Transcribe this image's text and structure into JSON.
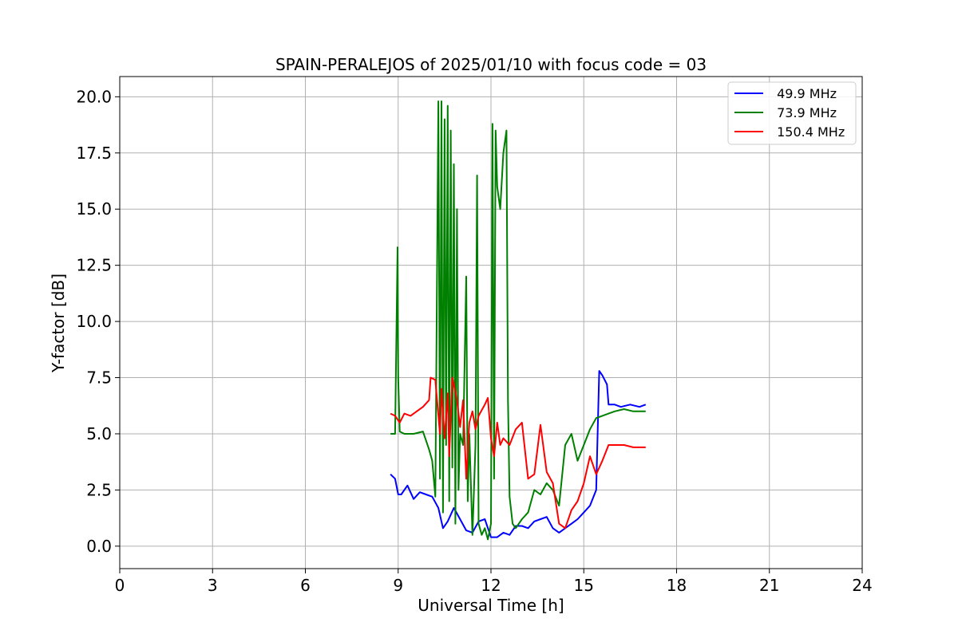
{
  "chart_data": {
    "type": "line",
    "title": "SPAIN-PERALEJOS of 2025/01/10 with focus code = 03",
    "xlabel": "Universal Time [h]",
    "ylabel": "Y-factor [dB]",
    "xlim": [
      0,
      24
    ],
    "ylim": [
      -1,
      20.9
    ],
    "x_ticks": [
      0,
      3,
      6,
      9,
      12,
      15,
      18,
      21,
      24
    ],
    "x_tick_labels": [
      "0",
      "3",
      "6",
      "9",
      "12",
      "15",
      "18",
      "21",
      "24"
    ],
    "y_ticks": [
      0.0,
      2.5,
      5.0,
      7.5,
      10.0,
      12.5,
      15.0,
      17.5,
      20.0
    ],
    "y_tick_labels": [
      "0.0",
      "2.5",
      "5.0",
      "7.5",
      "10.0",
      "12.5",
      "15.0",
      "17.5",
      "20.0"
    ],
    "grid": true,
    "legend_position": "top-right",
    "series": [
      {
        "name": " 49.9 MHz",
        "color": "#0000ff",
        "x": [
          8.75,
          8.9,
          9.0,
          9.1,
          9.3,
          9.5,
          9.7,
          9.9,
          10.1,
          10.3,
          10.45,
          10.6,
          10.8,
          11.0,
          11.2,
          11.4,
          11.6,
          11.8,
          12.0,
          12.2,
          12.4,
          12.6,
          12.8,
          13.0,
          13.2,
          13.4,
          13.6,
          13.8,
          14.0,
          14.2,
          14.4,
          14.6,
          14.8,
          15.0,
          15.2,
          15.4,
          15.5,
          15.6,
          15.75,
          15.8,
          16.0,
          16.2,
          16.5,
          16.8,
          17.0
        ],
        "y": [
          3.2,
          3.0,
          2.3,
          2.3,
          2.7,
          2.1,
          2.4,
          2.3,
          2.2,
          1.7,
          0.8,
          1.1,
          1.7,
          1.2,
          0.7,
          0.6,
          1.1,
          1.2,
          0.4,
          0.4,
          0.6,
          0.5,
          0.9,
          0.9,
          0.8,
          1.1,
          1.2,
          1.3,
          0.8,
          0.6,
          0.8,
          1.0,
          1.2,
          1.5,
          1.8,
          2.5,
          7.8,
          7.6,
          7.2,
          6.3,
          6.3,
          6.2,
          6.3,
          6.2,
          6.3
        ]
      },
      {
        "name": " 73.9 MHz",
        "color": "#008000",
        "x": [
          8.75,
          8.9,
          8.98,
          9.0,
          9.05,
          9.2,
          9.5,
          9.8,
          10.0,
          10.1,
          10.2,
          10.3,
          10.35,
          10.4,
          10.45,
          10.5,
          10.55,
          10.6,
          10.65,
          10.7,
          10.75,
          10.8,
          10.85,
          10.9,
          10.95,
          11.0,
          11.1,
          11.2,
          11.25,
          11.3,
          11.4,
          11.5,
          11.55,
          11.6,
          11.7,
          11.8,
          11.9,
          12.0,
          12.05,
          12.1,
          12.15,
          12.2,
          12.3,
          12.4,
          12.5,
          12.55,
          12.6,
          12.7,
          12.8,
          13.0,
          13.2,
          13.4,
          13.6,
          13.8,
          14.0,
          14.2,
          14.4,
          14.6,
          14.8,
          15.0,
          15.2,
          15.4,
          15.6,
          15.8,
          16.0,
          16.3,
          16.6,
          17.0
        ],
        "y": [
          5.0,
          5.0,
          13.3,
          7.5,
          5.1,
          5.0,
          5.0,
          5.1,
          4.3,
          3.8,
          2.2,
          19.8,
          3.0,
          19.8,
          1.5,
          19.0,
          4.5,
          19.6,
          2.0,
          18.5,
          3.5,
          17.0,
          1.0,
          15.0,
          2.5,
          5.0,
          4.5,
          12.0,
          2.0,
          5.0,
          0.5,
          4.5,
          16.5,
          1.0,
          0.5,
          0.8,
          0.3,
          1.0,
          18.8,
          3.0,
          18.5,
          16.0,
          15.0,
          17.5,
          18.5,
          6.5,
          2.2,
          1.0,
          0.8,
          1.2,
          1.5,
          2.5,
          2.3,
          2.8,
          2.5,
          1.8,
          4.5,
          5.0,
          3.8,
          4.5,
          5.2,
          5.7,
          5.8,
          5.9,
          6.0,
          6.1,
          6.0,
          6.0
        ]
      },
      {
        "name": " 150.4 MHz",
        "color": "#ff0000",
        "x": [
          8.75,
          8.9,
          9.05,
          9.2,
          9.4,
          9.6,
          9.8,
          10.0,
          10.05,
          10.2,
          10.35,
          10.4,
          10.5,
          10.6,
          10.65,
          10.75,
          10.8,
          10.9,
          11.0,
          11.1,
          11.2,
          11.3,
          11.4,
          11.5,
          11.6,
          11.8,
          11.9,
          12.0,
          12.1,
          12.2,
          12.3,
          12.4,
          12.6,
          12.8,
          13.0,
          13.2,
          13.4,
          13.6,
          13.8,
          14.0,
          14.2,
          14.4,
          14.6,
          14.8,
          15.0,
          15.2,
          15.4,
          15.6,
          15.8,
          16.0,
          16.3,
          16.6,
          17.0
        ],
        "y": [
          5.9,
          5.8,
          5.5,
          5.9,
          5.8,
          6.0,
          6.2,
          6.5,
          7.5,
          7.4,
          5.0,
          7.0,
          4.8,
          6.8,
          4.0,
          7.5,
          7.2,
          6.5,
          5.3,
          6.5,
          3.0,
          5.5,
          6.0,
          5.2,
          5.8,
          6.3,
          6.6,
          4.8,
          4.0,
          5.5,
          4.5,
          4.8,
          4.5,
          5.2,
          5.5,
          3.0,
          3.2,
          5.4,
          3.3,
          2.8,
          1.0,
          0.8,
          1.6,
          2.0,
          2.8,
          4.0,
          3.2,
          3.8,
          4.5,
          4.5,
          4.5,
          4.4,
          4.4
        ]
      }
    ]
  }
}
